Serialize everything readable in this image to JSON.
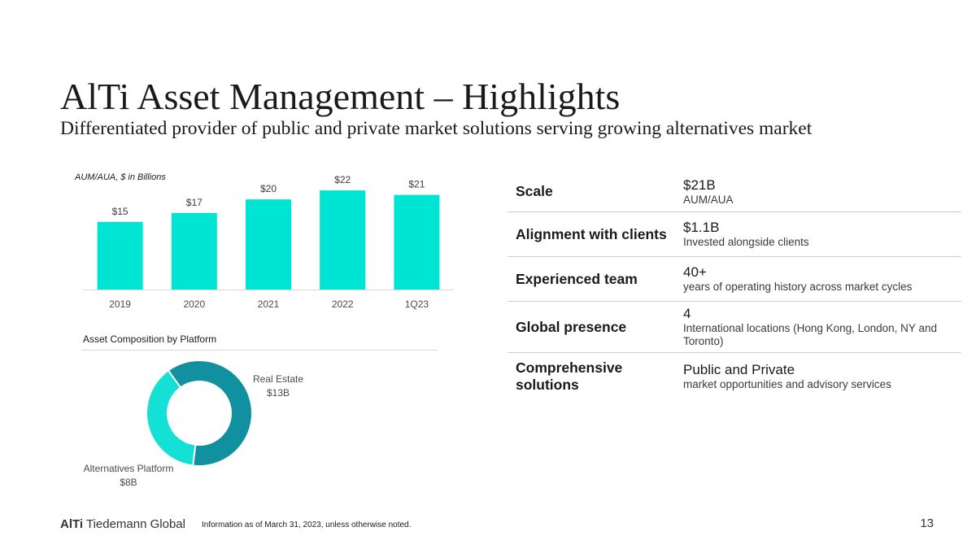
{
  "title": "AlTi Asset Management – Highlights",
  "subtitle": "Differentiated provider of public and private market solutions serving growing alternatives market",
  "chart_data": [
    {
      "type": "bar",
      "title": "AUM/AUA, $ in Billions",
      "categories": [
        "2019",
        "2020",
        "2021",
        "2022",
        "1Q23"
      ],
      "values": [
        15,
        17,
        20,
        22,
        21
      ],
      "value_labels": [
        "$15",
        "$17",
        "$20",
        "$22",
        "$21"
      ],
      "ylim": [
        0,
        24
      ],
      "xlabel": "",
      "ylabel": "",
      "color": "#00e4d4"
    },
    {
      "type": "pie",
      "style": "donut",
      "title": "Asset Composition by Platform",
      "slices": [
        {
          "name": "Real Estate",
          "value": 13,
          "label": "$13B",
          "color": "#1190a0"
        },
        {
          "name": "Alternatives Platform",
          "value": 8,
          "label": "$8B",
          "color": "#14e0d6"
        }
      ]
    }
  ],
  "highlights": [
    {
      "label": "Scale",
      "value": "$21B",
      "detail": "AUM/AUA"
    },
    {
      "label": "Alignment with clients",
      "value": "$1.1B",
      "detail": "Invested alongside clients"
    },
    {
      "label": "Experienced team",
      "value": "40+",
      "detail": "years of operating history across market cycles"
    },
    {
      "label": "Global presence",
      "value": "4",
      "detail": "International locations (Hong Kong, London, NY and Toronto)"
    },
    {
      "label": "Comprehensive solutions",
      "value": "Public and Private",
      "detail": "market opportunities and advisory services"
    }
  ],
  "footer": {
    "logo_bold": "AlTi",
    "logo_rest": " Tiedemann Global",
    "note": "Information as of March 31, 2023, unless otherwise noted.",
    "page": "13"
  }
}
